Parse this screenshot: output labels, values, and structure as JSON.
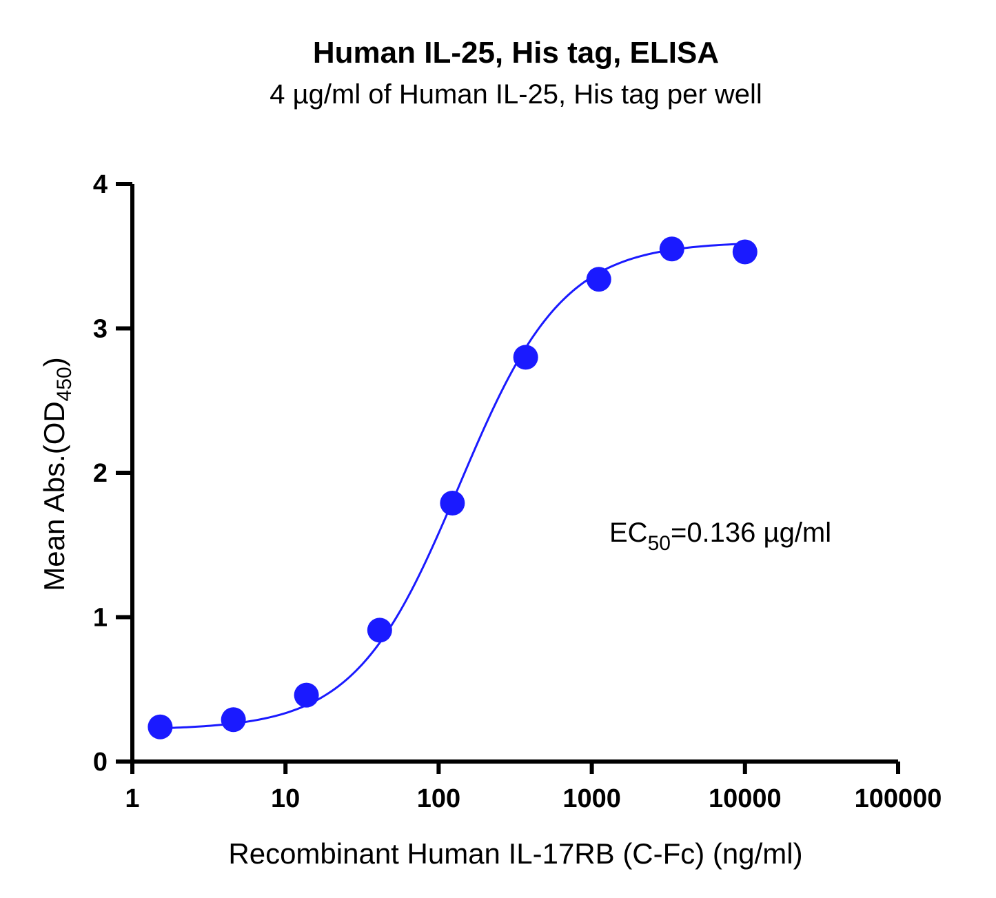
{
  "chart_data": {
    "type": "scatter",
    "title": "Human IL-25, His tag, ELISA",
    "subtitle": "4 µg/ml of Human IL-25, His tag per well",
    "xlabel": "Recombinant Human IL-17RB (C-Fc) (ng/ml)",
    "ylabel": {
      "main": "Mean Abs.(OD",
      "sub": "450",
      "close": ")"
    },
    "x_scale": "log",
    "xlim": [
      1,
      100000
    ],
    "ylim": [
      0,
      4
    ],
    "x_ticks": [
      "1",
      "10",
      "100",
      "1000",
      "10000",
      "100000"
    ],
    "x_tick_values": [
      1,
      10,
      100,
      1000,
      10000,
      100000
    ],
    "y_ticks": [
      "0",
      "1",
      "2",
      "3",
      "4"
    ],
    "y_tick_values": [
      0,
      1,
      2,
      3,
      4
    ],
    "grid": false,
    "annotation": {
      "prefix": "EC",
      "sub": "50",
      "suffix": "=0.136 µg/ml"
    },
    "colors": {
      "series": "#1a1aff",
      "axis": "#000000"
    },
    "series": [
      {
        "points": [
          {
            "x": 1.52,
            "y": 0.24
          },
          {
            "x": 4.57,
            "y": 0.29
          },
          {
            "x": 13.7,
            "y": 0.46
          },
          {
            "x": 41.2,
            "y": 0.91
          },
          {
            "x": 123,
            "y": 1.79
          },
          {
            "x": 370,
            "y": 2.8
          },
          {
            "x": 1111,
            "y": 3.34
          },
          {
            "x": 3333,
            "y": 3.55
          },
          {
            "x": 10000,
            "y": 3.53
          }
        ],
        "fit": {
          "model": "4PL",
          "bottom": 0.22,
          "top": 3.6,
          "ec50": 136,
          "hill": 1.28
        }
      }
    ]
  }
}
